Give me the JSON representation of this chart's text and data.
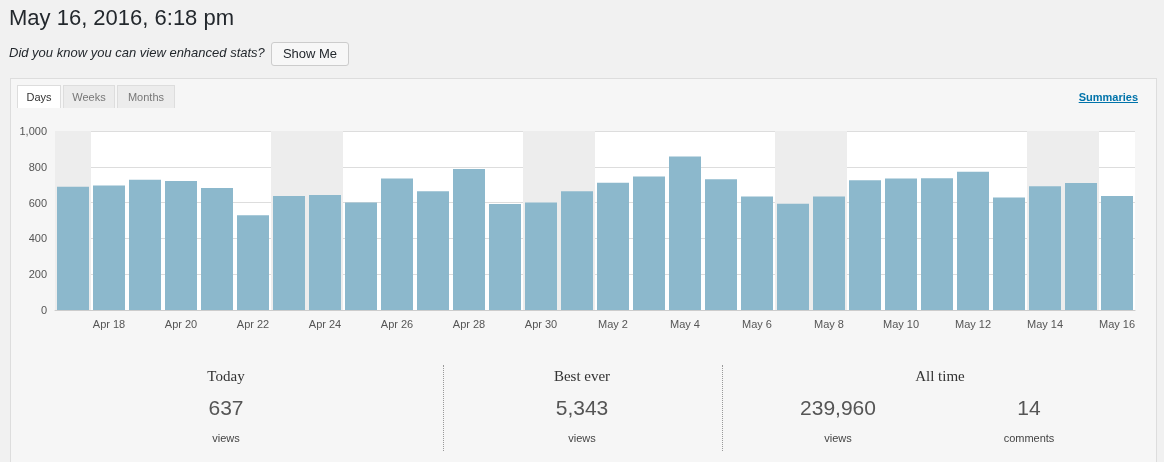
{
  "chart_data": [
    {
      "type": "bar",
      "title": "May 16, 2016, 6:18 pm",
      "subtitle": "Did you know you can view enhanced stats?",
      "annotations": [
        "Show Me",
        "Days",
        "Weeks",
        "Months",
        "Summaries"
      ],
      "x": [
        "2016-04-17",
        "2016-04-18",
        "2016-04-19",
        "2016-04-20",
        "2016-04-21",
        "2016-04-22",
        "2016-04-23",
        "2016-04-24",
        "2016-04-25",
        "2016-04-26",
        "2016-04-27",
        "2016-04-28",
        "2016-04-29",
        "2016-04-30",
        "2016-05-01",
        "2016-05-02",
        "2016-05-03",
        "2016-05-04",
        "2016-05-05",
        "2016-05-06",
        "2016-05-07",
        "2016-05-08",
        "2016-05-09",
        "2016-05-10",
        "2016-05-11",
        "2016-05-12",
        "2016-05-13",
        "2016-05-14",
        "2016-05-15",
        "2016-05-16"
      ],
      "values": [
        689,
        695,
        727,
        721,
        682,
        530,
        637,
        642,
        601,
        734,
        663,
        788,
        592,
        601,
        664,
        711,
        746,
        858,
        730,
        634,
        593,
        634,
        725,
        734,
        736,
        773,
        628,
        692,
        709,
        637
      ],
      "color": "#8cb8cc",
      "xlim": [
        "2016-04-16T12:00",
        "2016-05-16T12:00"
      ],
      "xticks": [
        {
          "value": "2016-04-18",
          "label": "Apr 18"
        },
        {
          "value": "2016-04-20",
          "label": "Apr 20"
        },
        {
          "value": "2016-04-22",
          "label": "Apr 22"
        },
        {
          "value": "2016-04-24",
          "label": "Apr 24"
        },
        {
          "value": "2016-04-26",
          "label": "Apr 26"
        },
        {
          "value": "2016-04-28",
          "label": "Apr 28"
        },
        {
          "value": "2016-04-30",
          "label": "Apr 30"
        },
        {
          "value": "2016-05-02",
          "label": "May 2"
        },
        {
          "value": "2016-05-04",
          "label": "May 4"
        },
        {
          "value": "2016-05-06",
          "label": "May 6"
        },
        {
          "value": "2016-05-08",
          "label": "May 8"
        },
        {
          "value": "2016-05-10",
          "label": "May 10"
        },
        {
          "value": "2016-05-12",
          "label": "May 12"
        },
        {
          "value": "2016-05-14",
          "label": "May 14"
        },
        {
          "value": "2016-05-16",
          "label": "May 16"
        }
      ],
      "ylim": [
        0,
        1000
      ],
      "yticks": [
        0,
        200,
        400,
        600,
        800,
        {
          "value": 1000,
          "label": "1,000"
        }
      ],
      "grid": "y",
      "bands": [
        {
          "axis": "x",
          "from": "2016-04-16T12:00",
          "to": "2016-04-17T12:00",
          "color": "#ededed"
        },
        {
          "axis": "x",
          "from": "2016-04-22T12:00",
          "to": "2016-04-24T12:00",
          "color": "#ededed"
        },
        {
          "axis": "x",
          "from": "2016-04-29T12:00",
          "to": "2016-05-01T12:00",
          "color": "#ededed"
        },
        {
          "axis": "x",
          "from": "2016-05-06T12:00",
          "to": "2016-05-08T12:00",
          "color": "#ededed"
        },
        {
          "axis": "x",
          "from": "2016-05-13T12:00",
          "to": "2016-05-15T12:00",
          "color": "#ededed"
        }
      ]
    },
    {
      "type": "other",
      "annotations": [
        "Today",
        "637",
        "views",
        "Best ever",
        "5,343",
        "views",
        "All time",
        "239,960",
        "views",
        "14",
        "comments"
      ]
    }
  ]
}
